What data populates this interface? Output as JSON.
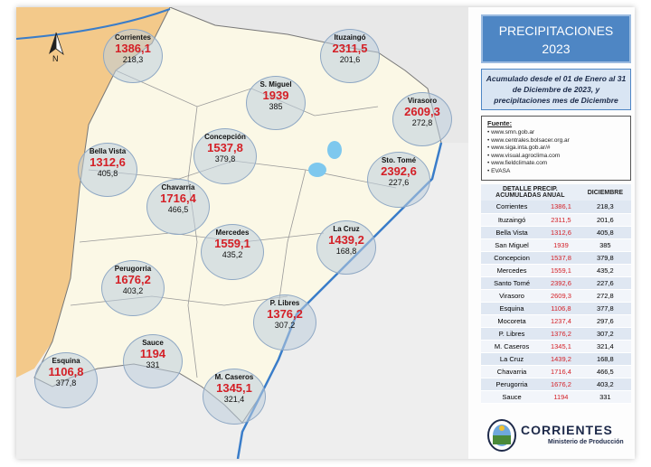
{
  "title_line1": "PRECIPITACIONES",
  "title_line2": "2023",
  "subtitle": "Acumulado desde el 01 de Enero al 31 de Diciembre de 2023, y precipitaciones mes de Diciembre",
  "compass_label": "N",
  "sources": {
    "title": "Fuente:",
    "items": [
      "www.smn.gob.ar",
      "www.centrales.bolsacer.org.ar",
      "www.siga.inta.gob.ar/#",
      "www.visual.agroclima.com",
      "www.fieldclimate.com",
      "EVASA"
    ]
  },
  "table": {
    "header_detail": "DETALLE PRECIP.",
    "header_annual": "ACUMULADAS ANUAL",
    "header_december": "DICIEMBRE",
    "rows": [
      {
        "name": "Corrientes",
        "annual": "1386,1",
        "dec": "218,3"
      },
      {
        "name": "Ituzaingó",
        "annual": "2311,5",
        "dec": "201,6"
      },
      {
        "name": "Bella Vista",
        "annual": "1312,6",
        "dec": "405,8"
      },
      {
        "name": "San Miguel",
        "annual": "1939",
        "dec": "385"
      },
      {
        "name": "Concepcion",
        "annual": "1537,8",
        "dec": "379,8"
      },
      {
        "name": "Mercedes",
        "annual": "1559,1",
        "dec": "435,2"
      },
      {
        "name": "Santo Tomé",
        "annual": "2392,6",
        "dec": "227,6"
      },
      {
        "name": "Virasoro",
        "annual": "2609,3",
        "dec": "272,8"
      },
      {
        "name": "Esquina",
        "annual": "1106,8",
        "dec": "377,8"
      },
      {
        "name": "Mocoreta",
        "annual": "1237,4",
        "dec": "297,6"
      },
      {
        "name": "P. Libres",
        "annual": "1376,2",
        "dec": "307,2"
      },
      {
        "name": "M. Caseros",
        "annual": "1345,1",
        "dec": "321,4"
      },
      {
        "name": "La Cruz",
        "annual": "1439,2",
        "dec": "168,8"
      },
      {
        "name": "Chavarria",
        "annual": "1716,4",
        "dec": "466,5"
      },
      {
        "name": "Perugorria",
        "annual": "1676,2",
        "dec": "403,2"
      },
      {
        "name": "Sauce",
        "annual": "1194",
        "dec": "331"
      }
    ]
  },
  "bubbles": [
    {
      "name": "Corrientes",
      "annual": "1386,1",
      "dec": "218,3"
    },
    {
      "name": "Ituzaingó",
      "annual": "2311,5",
      "dec": "201,6"
    },
    {
      "name": "S. Miguel",
      "annual": "1939",
      "dec": "385"
    },
    {
      "name": "Virasoro",
      "annual": "2609,3",
      "dec": "272,8"
    },
    {
      "name": "Bella Vista",
      "annual": "1312,6",
      "dec": "405,8"
    },
    {
      "name": "Concepción",
      "annual": "1537,8",
      "dec": "379,8"
    },
    {
      "name": "Sto. Tomé",
      "annual": "2392,6",
      "dec": "227,6"
    },
    {
      "name": "Chavarría",
      "annual": "1716,4",
      "dec": "466,5"
    },
    {
      "name": "Mercedes",
      "annual": "1559,1",
      "dec": "435,2"
    },
    {
      "name": "La Cruz",
      "annual": "1439,2",
      "dec": "168,8"
    },
    {
      "name": "Perugorria",
      "annual": "1676,2",
      "dec": "403,2"
    },
    {
      "name": "P. Libres",
      "annual": "1376,2",
      "dec": "307,2"
    },
    {
      "name": "Sauce",
      "annual": "1194",
      "dec": "331"
    },
    {
      "name": "Esquina",
      "annual": "1106,8",
      "dec": "377,8"
    },
    {
      "name": "M. Caseros",
      "annual": "1345,1",
      "dec": "321,4"
    }
  ],
  "logo": {
    "brand": "CORRIENTES",
    "ministry": "Ministerio de Producción"
  },
  "colors": {
    "annual_value": "#d41f26",
    "land_neighbor": "#f3c98a",
    "province": "#fbf8e6",
    "river": "#3a7dc9",
    "title_bg": "#4e86c4"
  }
}
